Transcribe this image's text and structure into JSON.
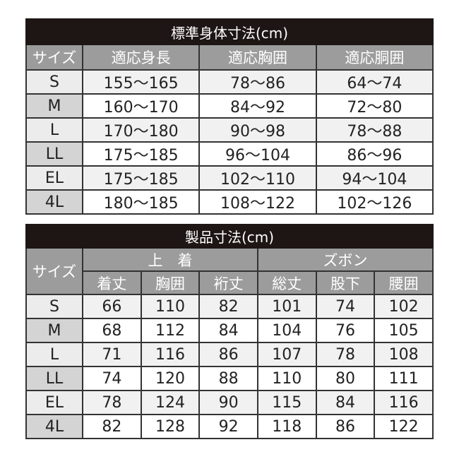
{
  "body_table": {
    "title": "標準身体寸法(cm)",
    "headers": [
      "サイズ",
      "適応身長",
      "適応胸囲",
      "適応胴囲"
    ],
    "rows": [
      [
        "S",
        "155～165",
        "78～86",
        "64～74"
      ],
      [
        "M",
        "160～170",
        "84～92",
        "72～80"
      ],
      [
        "L",
        "170～180",
        "90～98",
        "78～88"
      ],
      [
        "LL",
        "175～185",
        "96～104",
        "86～96"
      ],
      [
        "EL",
        "175～185",
        "102～110",
        "94～104"
      ],
      [
        "4L",
        "180～185",
        "108～122",
        "102～126"
      ]
    ]
  },
  "product_table": {
    "title": "製品寸法(cm)",
    "size_header": "サイズ",
    "group_top": "上　着",
    "group_pants": "ズボン",
    "headers": [
      "着丈",
      "胸囲",
      "裄丈",
      "総丈",
      "股下",
      "腰囲"
    ],
    "rows": [
      [
        "S",
        "66",
        "110",
        "82",
        "101",
        "74",
        "102"
      ],
      [
        "M",
        "68",
        "112",
        "84",
        "104",
        "76",
        "105"
      ],
      [
        "L",
        "71",
        "116",
        "86",
        "107",
        "78",
        "108"
      ],
      [
        "LL",
        "74",
        "120",
        "88",
        "110",
        "80",
        "111"
      ],
      [
        "EL",
        "78",
        "124",
        "90",
        "115",
        "84",
        "116"
      ],
      [
        "4L",
        "82",
        "128",
        "92",
        "118",
        "86",
        "122"
      ]
    ]
  }
}
